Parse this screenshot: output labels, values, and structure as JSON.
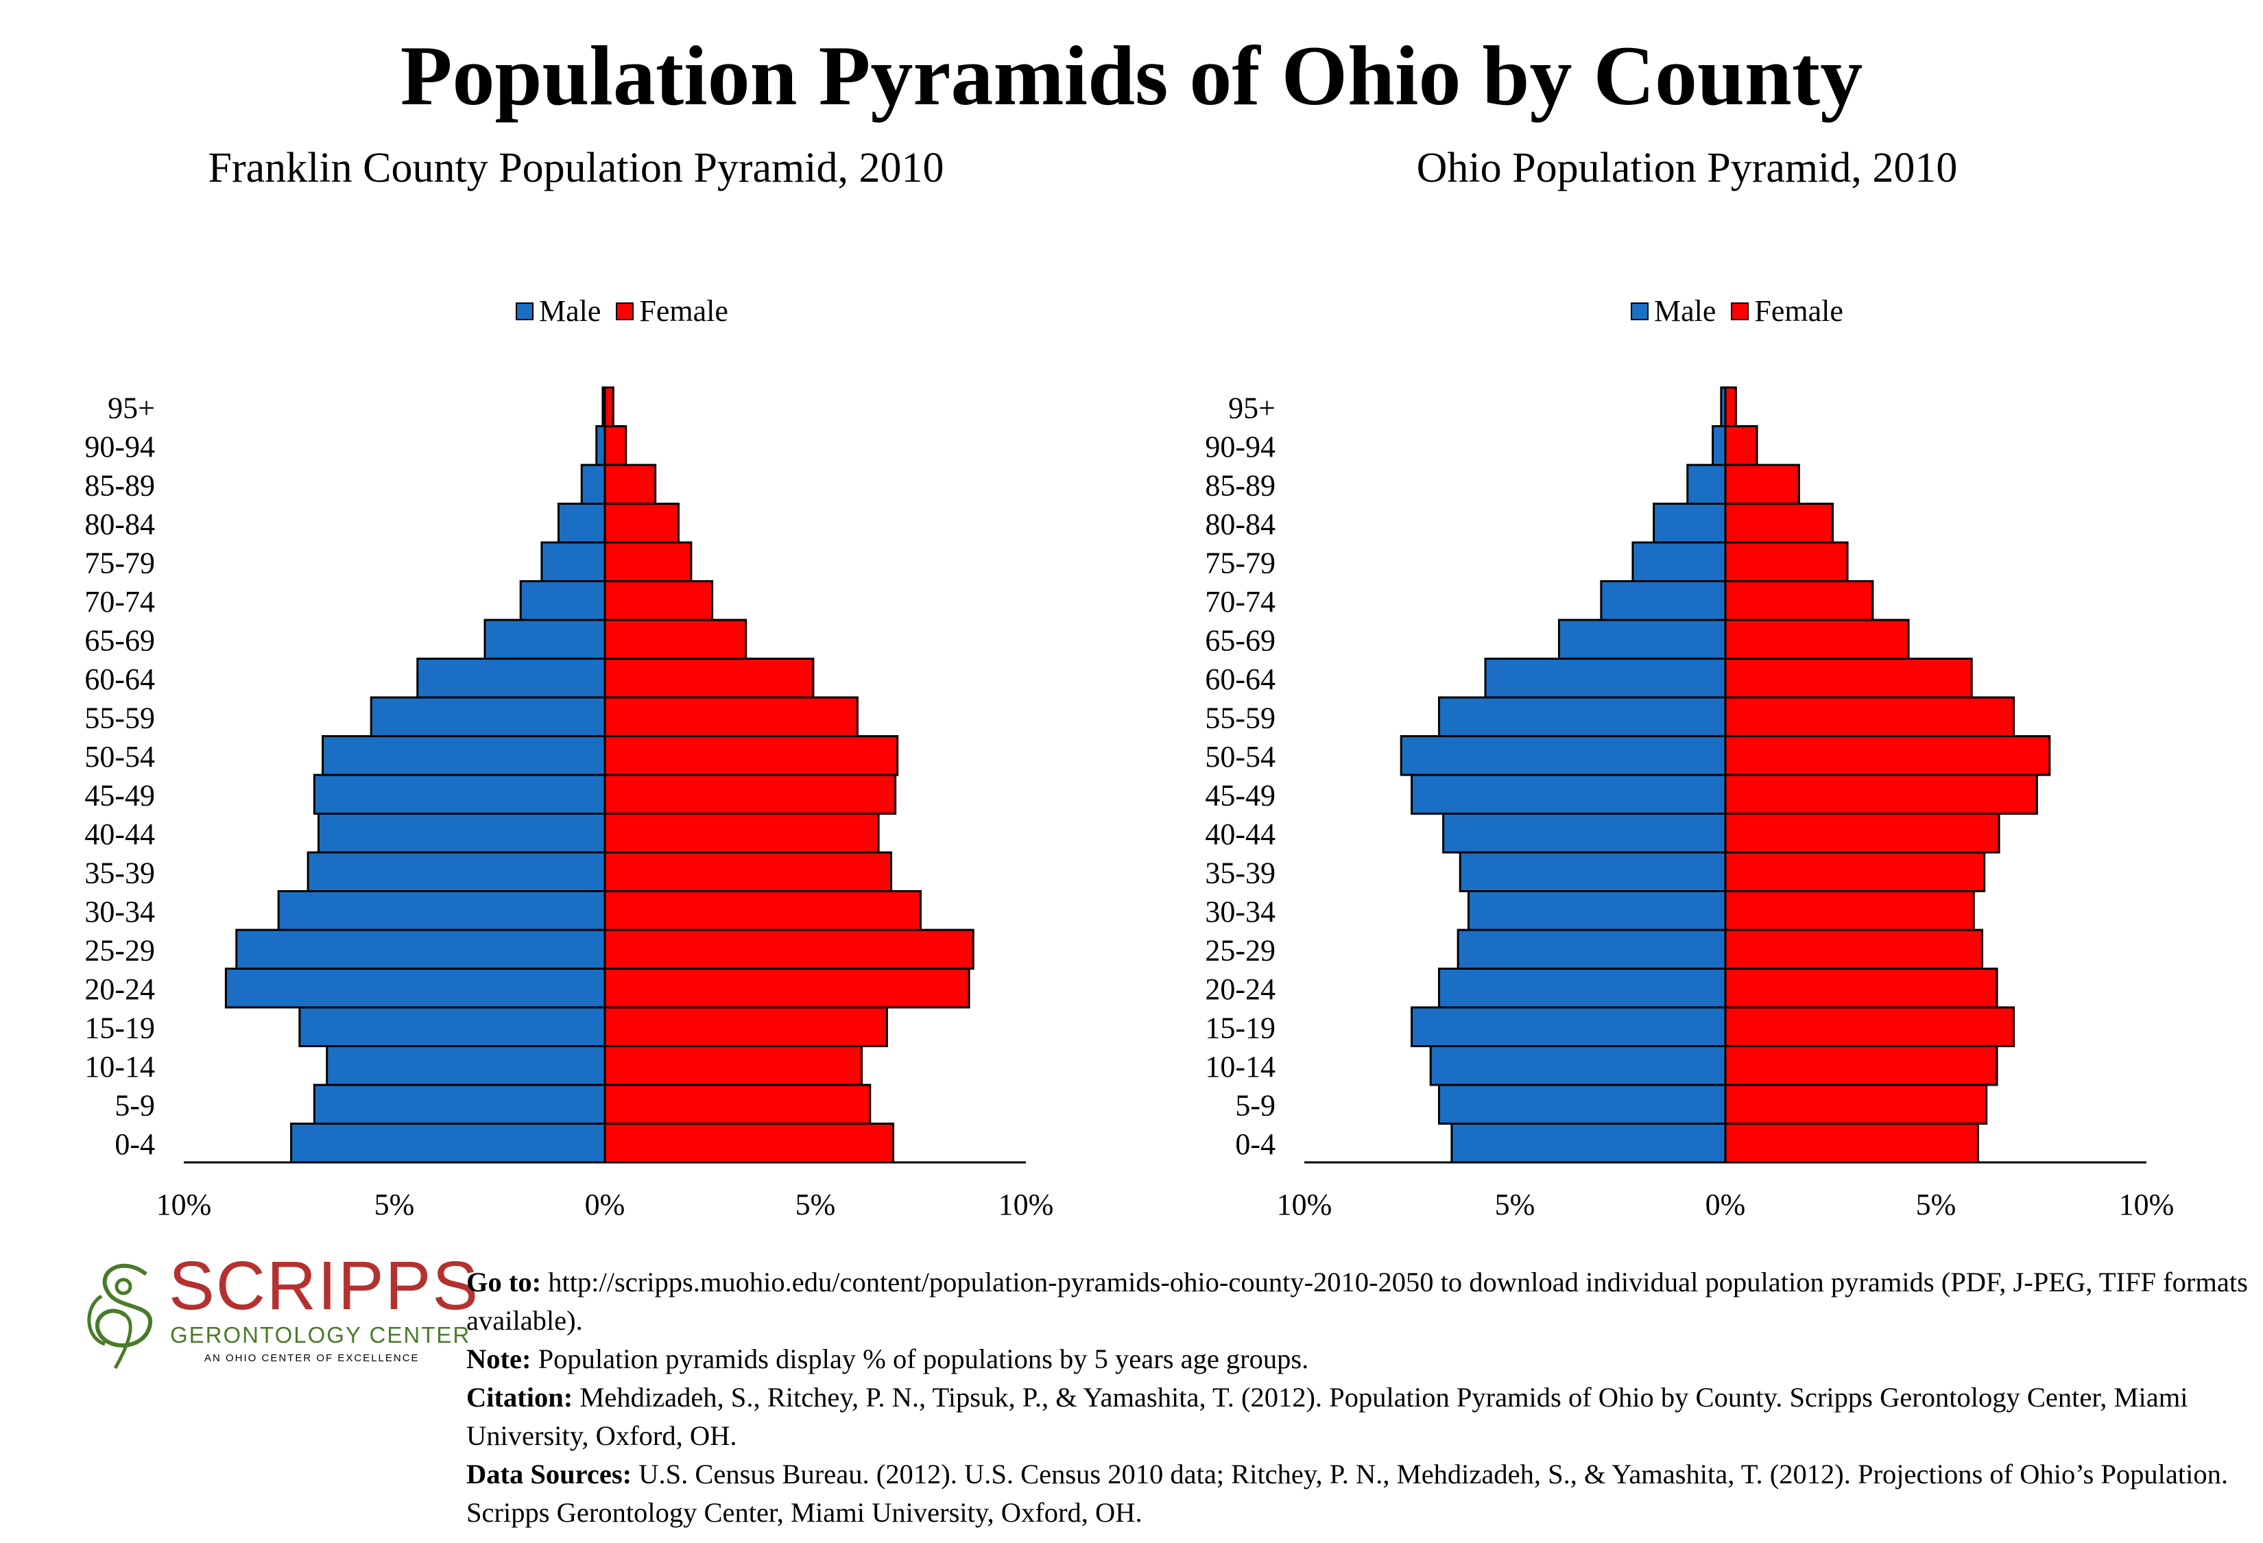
{
  "main_title": "Population Pyramids of Ohio by County",
  "legend": {
    "male": "Male",
    "female": "Female"
  },
  "colors": {
    "male": "#1a6fc4",
    "female": "#ff0000"
  },
  "x_tick_labels": [
    "10%",
    "5%",
    "0%",
    "5%",
    "10%"
  ],
  "chart_data": [
    {
      "type": "bar",
      "title": "Franklin County Population Pyramid, 2010",
      "legend_position": "top",
      "xlim": [
        -10,
        10
      ],
      "categories": [
        "95+",
        "90-94",
        "85-89",
        "80-84",
        "75-79",
        "70-74",
        "65-69",
        "60-64",
        "55-59",
        "50-54",
        "45-49",
        "40-44",
        "35-39",
        "30-34",
        "25-29",
        "20-24",
        "15-19",
        "10-14",
        "5-9",
        "0-4"
      ],
      "series": [
        {
          "name": "Male",
          "values": [
            0.05,
            0.2,
            0.55,
            1.1,
            1.5,
            2.0,
            2.85,
            4.45,
            5.55,
            6.7,
            6.9,
            6.8,
            7.05,
            7.75,
            8.75,
            9.0,
            7.25,
            6.6,
            6.9,
            7.45
          ]
        },
        {
          "name": "Female",
          "values": [
            0.2,
            0.5,
            1.2,
            1.75,
            2.05,
            2.55,
            3.35,
            4.95,
            6.0,
            6.95,
            6.9,
            6.5,
            6.8,
            7.5,
            8.75,
            8.65,
            6.7,
            6.1,
            6.3,
            6.85
          ]
        }
      ]
    },
    {
      "type": "bar",
      "title": "Ohio Population Pyramid, 2010",
      "legend_position": "top",
      "xlim": [
        -10,
        10
      ],
      "categories": [
        "95+",
        "90-94",
        "85-89",
        "80-84",
        "75-79",
        "70-74",
        "65-69",
        "60-64",
        "55-59",
        "50-54",
        "45-49",
        "40-44",
        "35-39",
        "30-34",
        "25-29",
        "20-24",
        "15-19",
        "10-14",
        "5-9",
        "0-4"
      ],
      "series": [
        {
          "name": "Male",
          "values": [
            0.1,
            0.3,
            0.9,
            1.7,
            2.2,
            2.95,
            3.95,
            5.7,
            6.8,
            7.7,
            7.45,
            6.7,
            6.3,
            6.1,
            6.35,
            6.8,
            7.45,
            7.0,
            6.8,
            6.5
          ]
        },
        {
          "name": "Female",
          "values": [
            0.25,
            0.75,
            1.75,
            2.55,
            2.9,
            3.5,
            4.35,
            5.85,
            6.85,
            7.7,
            7.4,
            6.5,
            6.15,
            5.9,
            6.1,
            6.45,
            6.85,
            6.45,
            6.2,
            6.0
          ]
        }
      ]
    }
  ],
  "footer": {
    "goto_label": "Go to:",
    "goto_text": " http://scripps.muohio.edu/content/population-pyramids-ohio-county-2010-2050 to download individual population pyramids (PDF, J-PEG, TIFF formats available).",
    "note_label": "Note:",
    "note_text": " Population pyramids display % of populations by 5 years age groups.",
    "citation_label": "Citation:",
    "citation_text": " Mehdizadeh, S., Ritchey, P. N., Tipsuk, P., & Yamashita, T. (2012). Population Pyramids of Ohio by County. Scripps Gerontology Center, Miami University, Oxford, OH.",
    "sources_label": "Data Sources:",
    "sources_text": " U.S. Census Bureau. (2012). U.S. Census 2010 data; Ritchey, P. N., Mehdizadeh, S., & Yamashita, T. (2012). Projections of Ohio’s Population. Scripps Gerontology Center, Miami University, Oxford, OH."
  },
  "logo": {
    "name": "SCRIPPS",
    "subtitle": "GERONTOLOGY CENTER",
    "tagline": "AN OHIO CENTER OF EXCELLENCE"
  }
}
